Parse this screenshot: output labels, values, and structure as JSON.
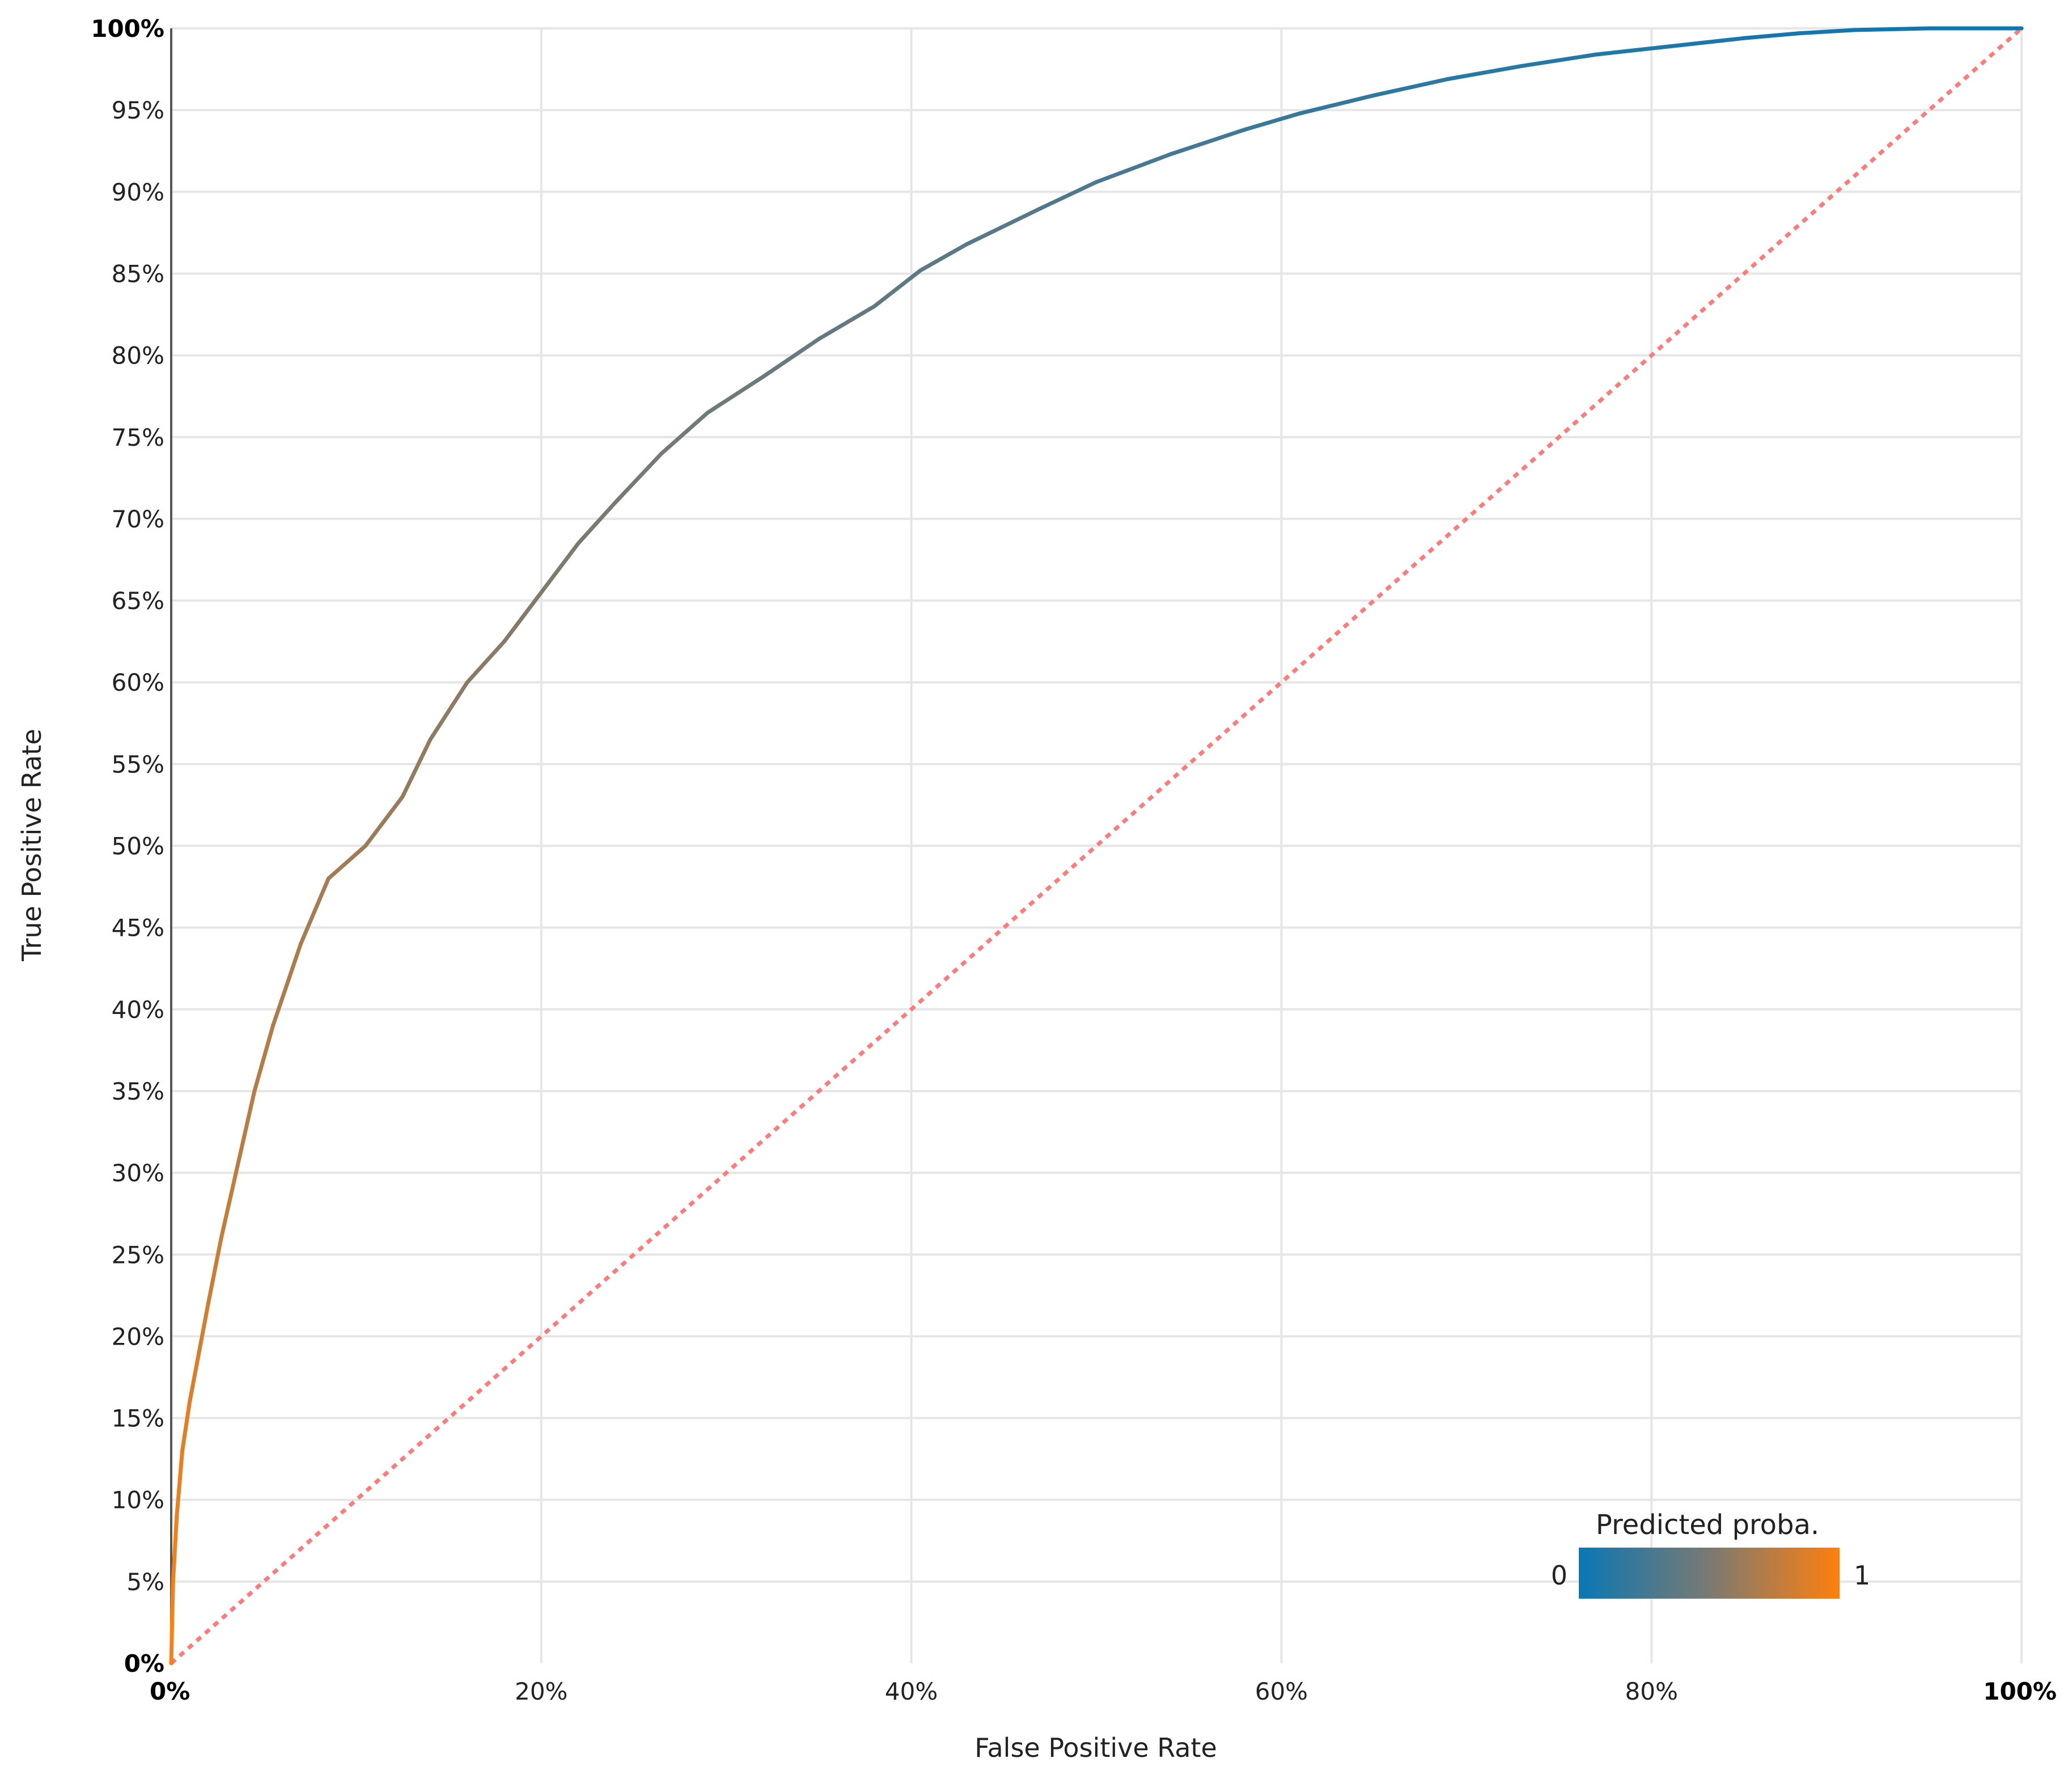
{
  "chart_data": {
    "type": "line",
    "xlabel": "False Positive Rate",
    "ylabel": "True Positive Rate",
    "xlim": [
      0,
      1
    ],
    "ylim": [
      0,
      1
    ],
    "grid": true,
    "x_ticks": [
      {
        "value": 0,
        "label": "0%",
        "bold": true
      },
      {
        "value": 0.2,
        "label": "20%",
        "bold": false
      },
      {
        "value": 0.4,
        "label": "40%",
        "bold": false
      },
      {
        "value": 0.6,
        "label": "60%",
        "bold": false
      },
      {
        "value": 0.8,
        "label": "80%",
        "bold": false
      },
      {
        "value": 1,
        "label": "100%",
        "bold": true
      }
    ],
    "y_ticks": [
      {
        "value": 0,
        "label": "0%",
        "bold": true
      },
      {
        "value": 0.05,
        "label": "5%",
        "bold": false
      },
      {
        "value": 0.1,
        "label": "10%",
        "bold": false
      },
      {
        "value": 0.15,
        "label": "15%",
        "bold": false
      },
      {
        "value": 0.2,
        "label": "20%",
        "bold": false
      },
      {
        "value": 0.25,
        "label": "25%",
        "bold": false
      },
      {
        "value": 0.3,
        "label": "30%",
        "bold": false
      },
      {
        "value": 0.35,
        "label": "35%",
        "bold": false
      },
      {
        "value": 0.4,
        "label": "40%",
        "bold": false
      },
      {
        "value": 0.45,
        "label": "45%",
        "bold": false
      },
      {
        "value": 0.5,
        "label": "50%",
        "bold": false
      },
      {
        "value": 0.55,
        "label": "55%",
        "bold": false
      },
      {
        "value": 0.6,
        "label": "60%",
        "bold": false
      },
      {
        "value": 0.65,
        "label": "65%",
        "bold": false
      },
      {
        "value": 0.7,
        "label": "70%",
        "bold": false
      },
      {
        "value": 0.75,
        "label": "75%",
        "bold": false
      },
      {
        "value": 0.8,
        "label": "80%",
        "bold": false
      },
      {
        "value": 0.85,
        "label": "85%",
        "bold": false
      },
      {
        "value": 0.9,
        "label": "90%",
        "bold": false
      },
      {
        "value": 0.95,
        "label": "95%",
        "bold": false
      },
      {
        "value": 1,
        "label": "100%",
        "bold": true
      }
    ],
    "series": [
      {
        "kind": "roc-curve",
        "color_scale": "predicted-probability",
        "x": [
          0,
          0.001,
          0.003,
          0.006,
          0.01,
          0.015,
          0.02,
          0.027,
          0.035,
          0.045,
          0.055,
          0.07,
          0.085,
          0.1,
          0.105,
          0.125,
          0.14,
          0.16,
          0.18,
          0.2,
          0.22,
          0.24,
          0.265,
          0.29,
          0.32,
          0.35,
          0.38,
          0.405,
          0.43,
          0.47,
          0.5,
          0.54,
          0.58,
          0.61,
          0.65,
          0.69,
          0.73,
          0.77,
          0.81,
          0.85,
          0.88,
          0.91,
          0.95,
          1.0
        ],
        "y": [
          0,
          0.05,
          0.09,
          0.13,
          0.16,
          0.19,
          0.22,
          0.26,
          0.3,
          0.35,
          0.39,
          0.44,
          0.48,
          0.495,
          0.5,
          0.53,
          0.565,
          0.6,
          0.625,
          0.655,
          0.685,
          0.71,
          0.74,
          0.765,
          0.787,
          0.81,
          0.83,
          0.852,
          0.868,
          0.89,
          0.906,
          0.923,
          0.938,
          0.948,
          0.959,
          0.969,
          0.977,
          0.984,
          0.989,
          0.994,
          0.997,
          0.999,
          1.0,
          1.0
        ],
        "proba": [
          1.0,
          0.97,
          0.94,
          0.91,
          0.88,
          0.85,
          0.82,
          0.79,
          0.76,
          0.73,
          0.71,
          0.68,
          0.66,
          0.64,
          0.63,
          0.61,
          0.59,
          0.57,
          0.55,
          0.53,
          0.51,
          0.49,
          0.47,
          0.45,
          0.43,
          0.41,
          0.39,
          0.37,
          0.35,
          0.32,
          0.29,
          0.26,
          0.23,
          0.2,
          0.17,
          0.14,
          0.12,
          0.1,
          0.08,
          0.06,
          0.04,
          0.03,
          0.01,
          0.0
        ]
      },
      {
        "kind": "diagonal-reference",
        "color": "#ff7b7b",
        "style": "dotted",
        "x": [
          0,
          1
        ],
        "y": [
          0,
          1
        ]
      }
    ],
    "colors": {
      "low": "#0a77b4",
      "mid": "#7a7a72",
      "high": "#ff7f0e"
    },
    "legend": {
      "title": "Predicted proba.",
      "min_label": "0",
      "max_label": "1",
      "placement": "bottom-right"
    }
  }
}
